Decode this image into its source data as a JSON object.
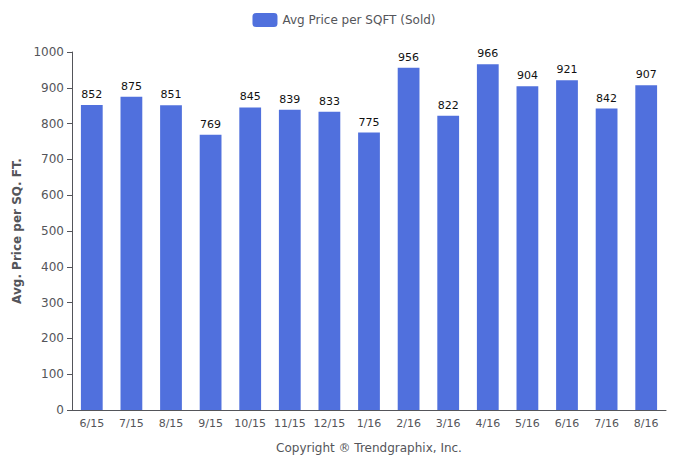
{
  "chart_data": {
    "type": "bar",
    "categories": [
      "6/15",
      "7/15",
      "8/15",
      "9/15",
      "10/15",
      "11/15",
      "12/15",
      "1/16",
      "2/16",
      "3/16",
      "4/16",
      "5/16",
      "6/16",
      "7/16",
      "8/16"
    ],
    "series": [
      {
        "name": "Avg Price per SQFT (Sold)",
        "values": [
          852,
          875,
          851,
          769,
          845,
          839,
          833,
          775,
          956,
          822,
          966,
          904,
          921,
          842,
          907
        ]
      }
    ],
    "xlabel": "Copyright ® Trendgraphix, Inc.",
    "ylabel": "Avg. Price per SQ. FT.",
    "ylim": [
      0,
      1000
    ],
    "yticks": [
      0,
      100,
      200,
      300,
      400,
      500,
      600,
      700,
      800,
      900,
      1000
    ],
    "grid": false,
    "legend": "top",
    "data_labels": true
  }
}
